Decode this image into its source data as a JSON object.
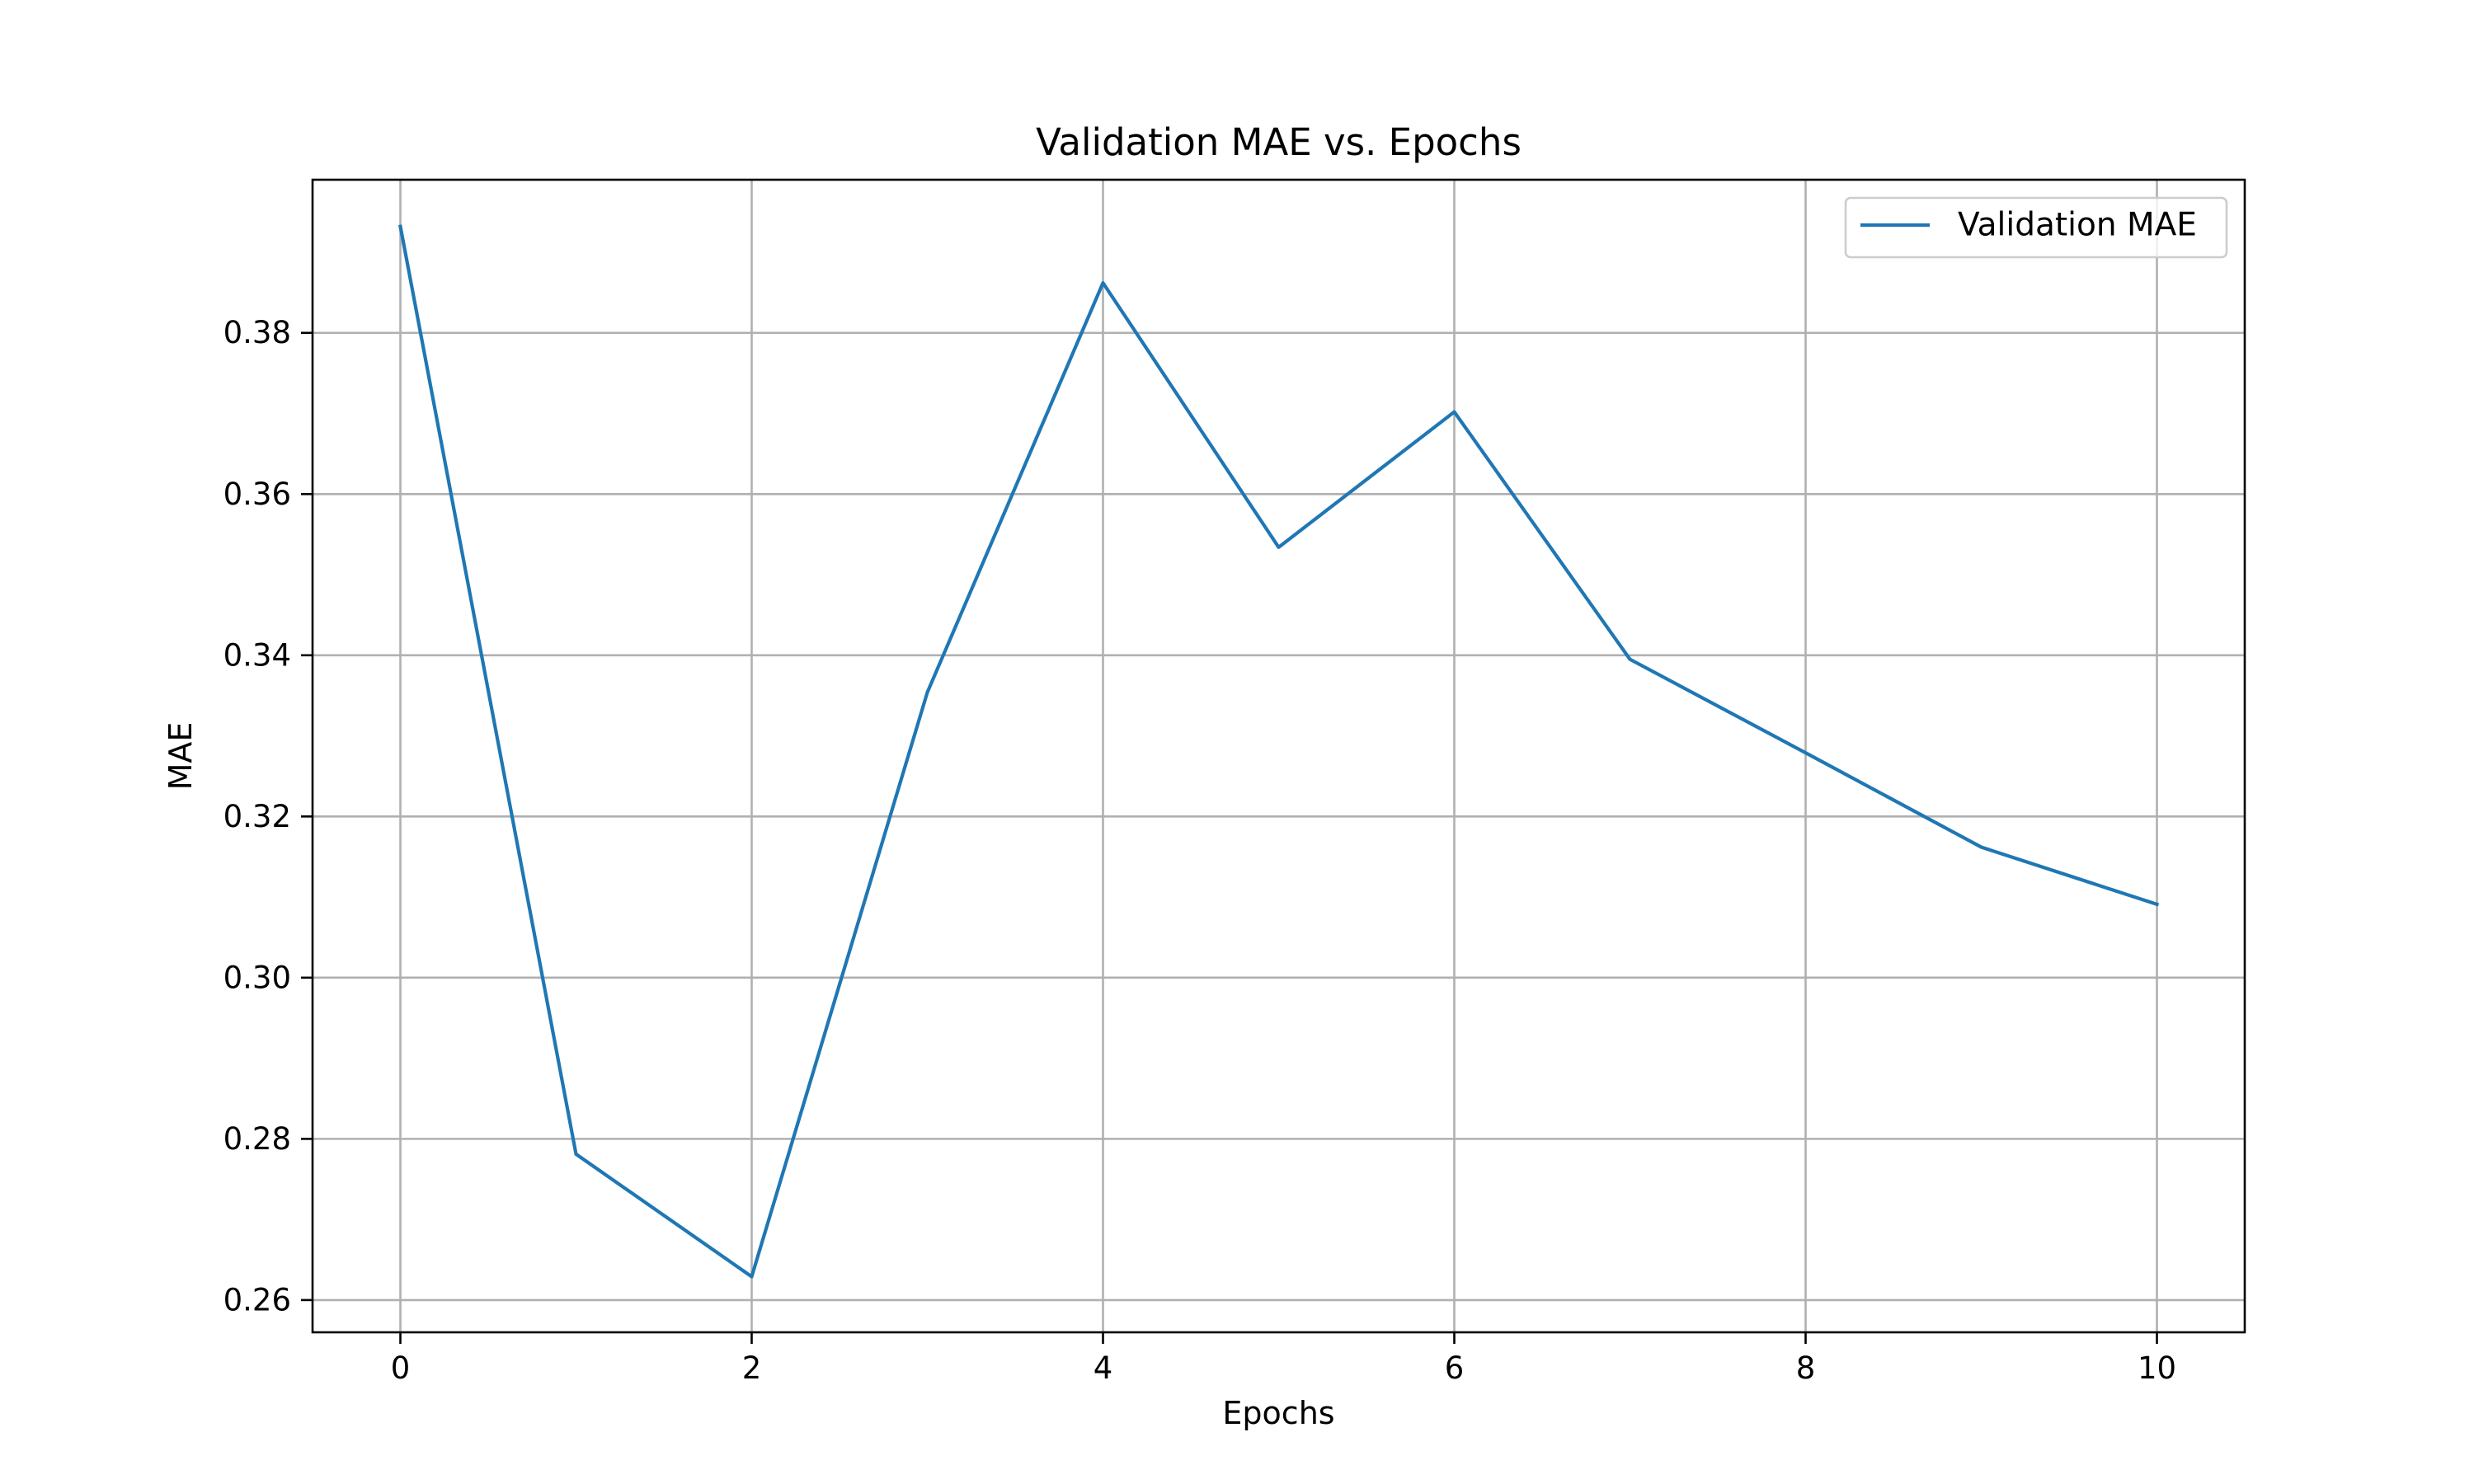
{
  "chart_data": {
    "type": "line",
    "title": "Validation MAE vs. Epochs",
    "xlabel": "Epochs",
    "ylabel": "MAE",
    "xlim": [
      -0.5,
      10.5
    ],
    "ylim": [
      0.256,
      0.399
    ],
    "xticks": [
      0,
      2,
      4,
      6,
      8,
      10
    ],
    "xtick_labels": [
      "0",
      "2",
      "4",
      "6",
      "8",
      "10"
    ],
    "yticks": [
      0.26,
      0.28,
      0.3,
      0.32,
      0.34,
      0.36,
      0.38
    ],
    "ytick_labels": [
      "0.26",
      "0.28",
      "0.30",
      "0.32",
      "0.34",
      "0.36",
      "0.38"
    ],
    "grid": true,
    "legend_position": "top-right",
    "series": [
      {
        "name": "Validation MAE",
        "color": "#1f77b4",
        "x": [
          0,
          1,
          2,
          3,
          4,
          5,
          6,
          7,
          8,
          9,
          10
        ],
        "values": [
          0.3932,
          0.2781,
          0.2629,
          0.3354,
          0.3862,
          0.3534,
          0.3702,
          0.3395,
          0.3279,
          0.3162,
          0.3091
        ]
      }
    ]
  }
}
